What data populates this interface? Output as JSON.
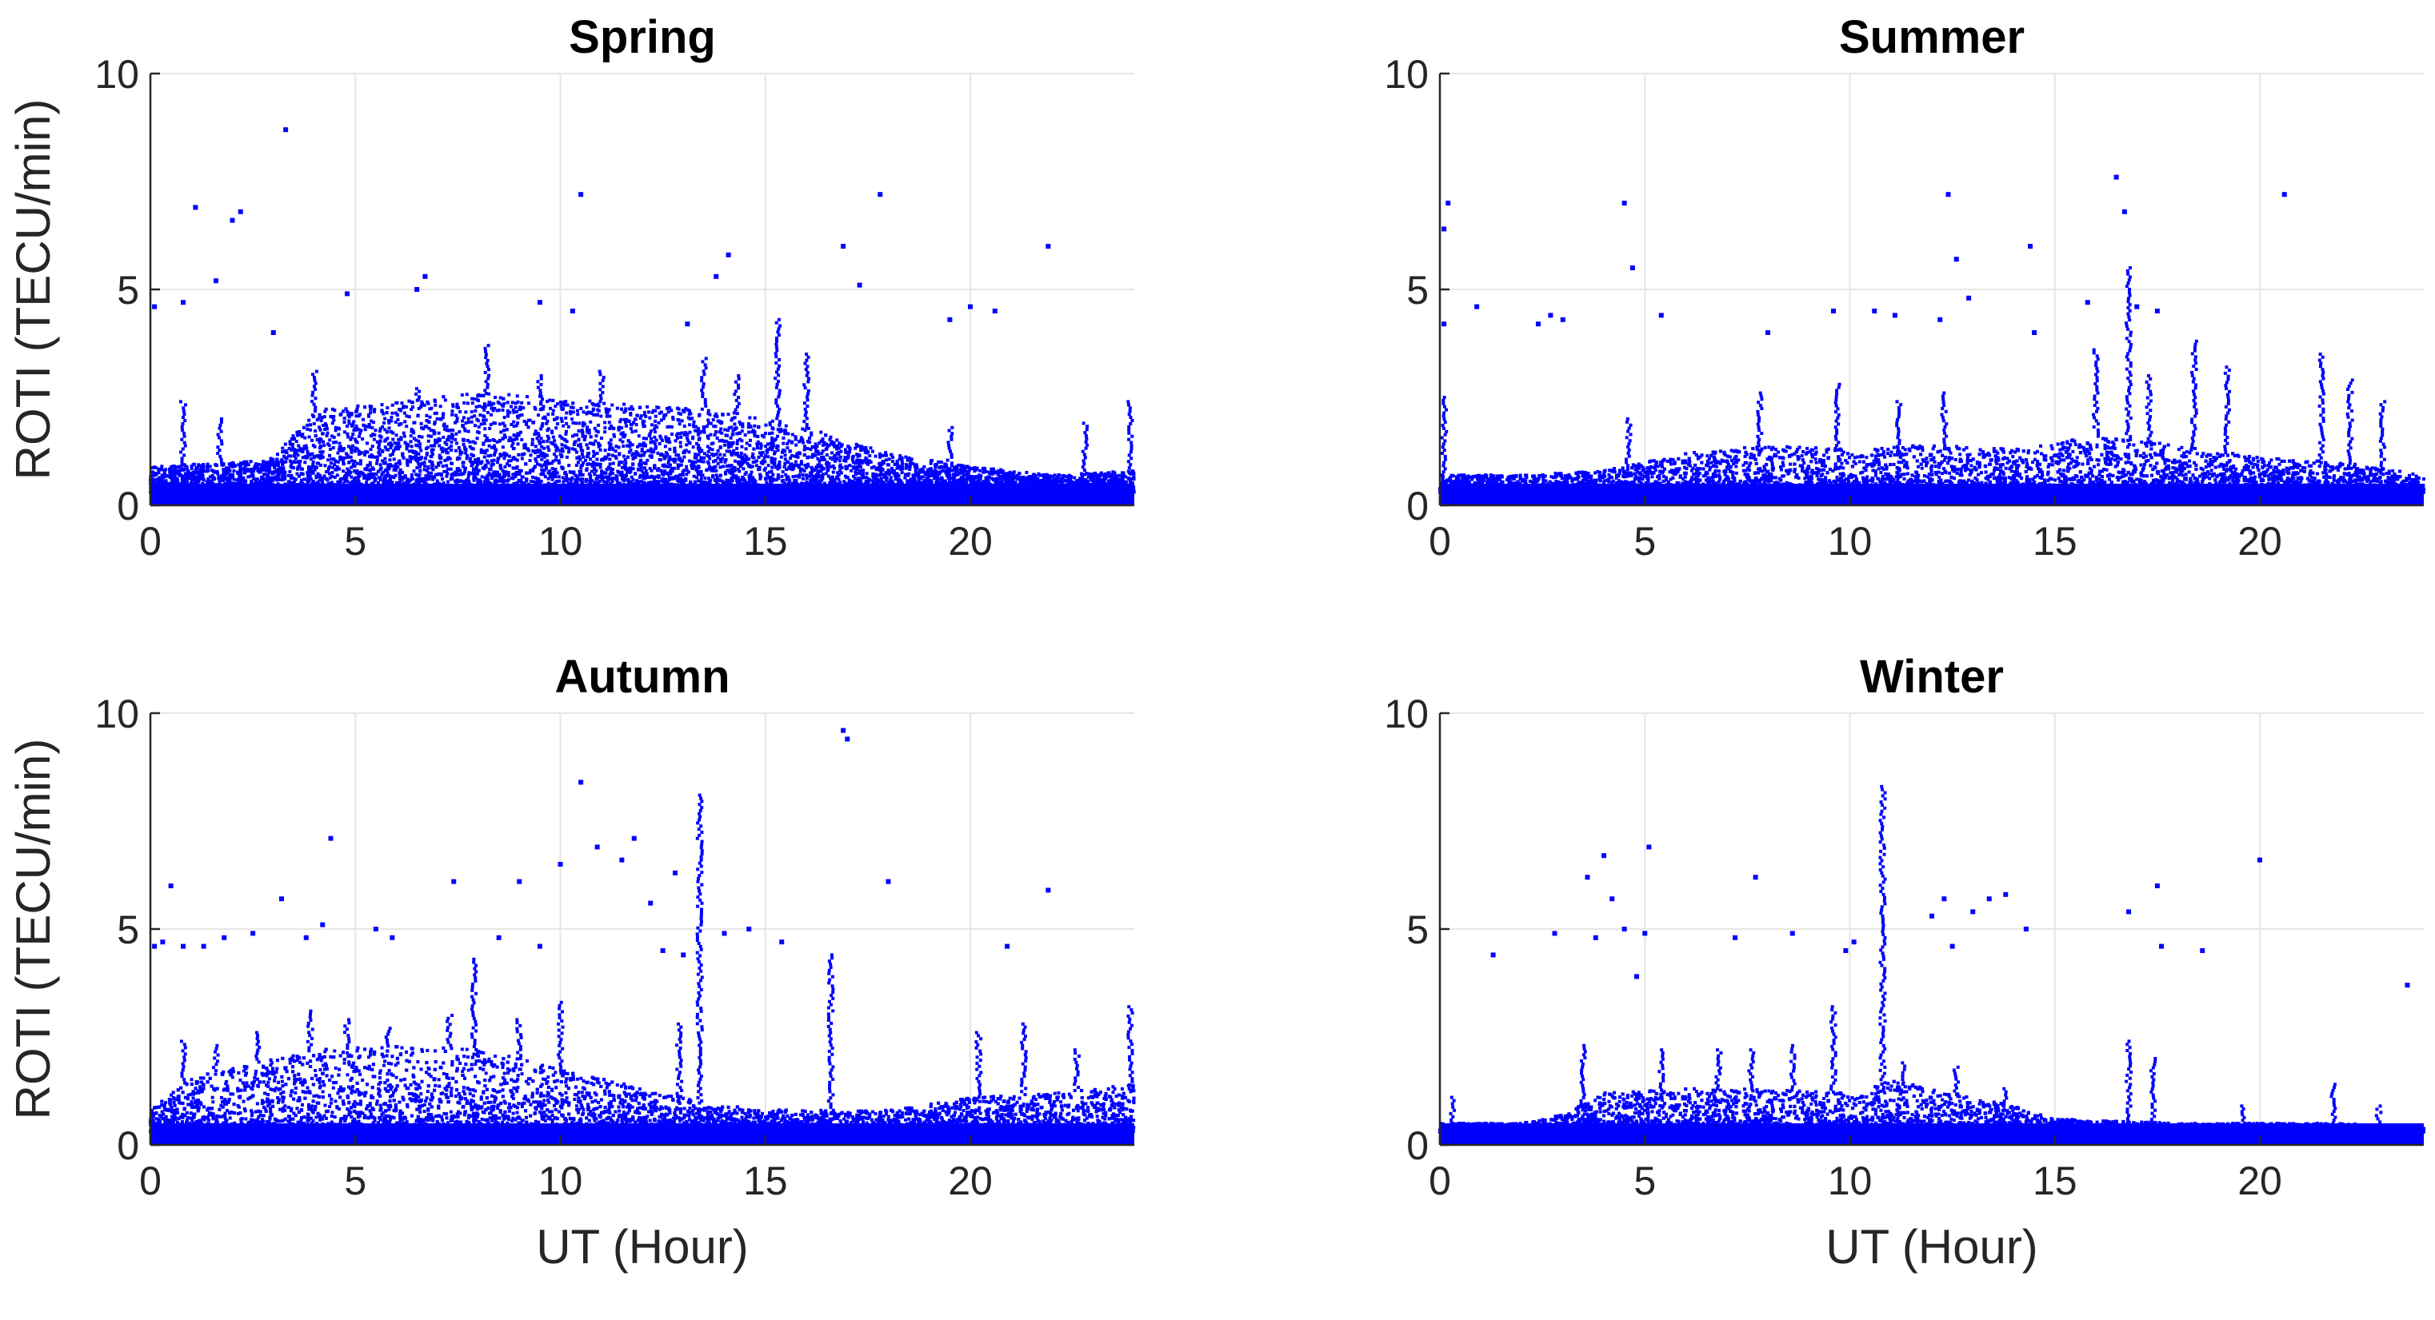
{
  "figure": {
    "ylabel": "ROTI (TECU/min)",
    "xlabel": "UT (Hour)",
    "marker_color": "#0000ff"
  },
  "chart_data": [
    {
      "type": "scatter",
      "title": "Spring",
      "xlabel": "",
      "ylabel": "ROTI (TECU/min)",
      "xlim": [
        0,
        24
      ],
      "ylim": [
        0,
        10
      ],
      "xticks": [
        "0",
        "5",
        "10",
        "15",
        "20"
      ],
      "yticks": [
        "0",
        "5",
        "10"
      ],
      "grid": true,
      "band_profile": [
        [
          0,
          0.9
        ],
        [
          2,
          1.0
        ],
        [
          3,
          1.1
        ],
        [
          4,
          2.2
        ],
        [
          6,
          2.4
        ],
        [
          8,
          2.6
        ],
        [
          10,
          2.5
        ],
        [
          12,
          2.3
        ],
        [
          14,
          2.2
        ],
        [
          16,
          1.8
        ],
        [
          18,
          1.2
        ],
        [
          20,
          0.9
        ],
        [
          22,
          0.7
        ],
        [
          24,
          0.8
        ]
      ],
      "spikes": [
        {
          "x": 0.8,
          "y": 2.4
        },
        {
          "x": 1.7,
          "y": 2.0
        },
        {
          "x": 4.0,
          "y": 3.1
        },
        {
          "x": 6.5,
          "y": 2.7
        },
        {
          "x": 8.2,
          "y": 3.7
        },
        {
          "x": 9.5,
          "y": 3.0
        },
        {
          "x": 11.0,
          "y": 3.1
        },
        {
          "x": 13.5,
          "y": 3.4
        },
        {
          "x": 14.3,
          "y": 3.0
        },
        {
          "x": 15.3,
          "y": 4.3
        },
        {
          "x": 16.0,
          "y": 3.5
        },
        {
          "x": 19.5,
          "y": 1.8
        },
        {
          "x": 22.8,
          "y": 1.9
        },
        {
          "x": 23.9,
          "y": 2.4
        }
      ],
      "outliers": [
        {
          "x": 0.1,
          "y": 4.6
        },
        {
          "x": 0.8,
          "y": 4.7
        },
        {
          "x": 1.1,
          "y": 6.9
        },
        {
          "x": 1.6,
          "y": 5.2
        },
        {
          "x": 2.0,
          "y": 6.6
        },
        {
          "x": 2.2,
          "y": 6.8
        },
        {
          "x": 3.0,
          "y": 4.0
        },
        {
          "x": 3.3,
          "y": 8.7
        },
        {
          "x": 4.8,
          "y": 4.9
        },
        {
          "x": 6.5,
          "y": 5.0
        },
        {
          "x": 6.7,
          "y": 5.3
        },
        {
          "x": 9.5,
          "y": 4.7
        },
        {
          "x": 10.3,
          "y": 4.5
        },
        {
          "x": 10.5,
          "y": 7.2
        },
        {
          "x": 13.1,
          "y": 4.2
        },
        {
          "x": 13.8,
          "y": 5.3
        },
        {
          "x": 14.1,
          "y": 5.8
        },
        {
          "x": 16.9,
          "y": 6.0
        },
        {
          "x": 17.3,
          "y": 5.1
        },
        {
          "x": 17.8,
          "y": 7.2
        },
        {
          "x": 19.5,
          "y": 4.3
        },
        {
          "x": 20.0,
          "y": 4.6
        },
        {
          "x": 20.6,
          "y": 4.5
        },
        {
          "x": 21.9,
          "y": 6.0
        }
      ]
    },
    {
      "type": "scatter",
      "title": "Summer",
      "xlabel": "",
      "ylabel": "",
      "xlim": [
        0,
        24
      ],
      "ylim": [
        0,
        10
      ],
      "xticks": [
        "0",
        "5",
        "10",
        "15",
        "20"
      ],
      "yticks": [
        "0",
        "5",
        "10"
      ],
      "grid": true,
      "band_profile": [
        [
          0,
          0.7
        ],
        [
          2,
          0.7
        ],
        [
          4,
          0.8
        ],
        [
          6,
          1.2
        ],
        [
          8,
          1.4
        ],
        [
          10,
          1.3
        ],
        [
          12,
          1.4
        ],
        [
          14,
          1.3
        ],
        [
          16,
          1.6
        ],
        [
          18,
          1.4
        ],
        [
          20,
          1.1
        ],
        [
          22,
          1.0
        ],
        [
          24,
          0.7
        ]
      ],
      "spikes": [
        {
          "x": 0.1,
          "y": 2.5
        },
        {
          "x": 4.6,
          "y": 2.0
        },
        {
          "x": 7.8,
          "y": 2.6
        },
        {
          "x": 9.7,
          "y": 2.8
        },
        {
          "x": 11.2,
          "y": 2.4
        },
        {
          "x": 12.3,
          "y": 2.6
        },
        {
          "x": 16.0,
          "y": 3.6
        },
        {
          "x": 16.8,
          "y": 5.5
        },
        {
          "x": 17.3,
          "y": 3.0
        },
        {
          "x": 18.4,
          "y": 3.8
        },
        {
          "x": 19.2,
          "y": 3.2
        },
        {
          "x": 21.5,
          "y": 3.5
        },
        {
          "x": 22.2,
          "y": 2.9
        },
        {
          "x": 23.0,
          "y": 2.4
        }
      ],
      "outliers": [
        {
          "x": 0.1,
          "y": 6.4
        },
        {
          "x": 0.2,
          "y": 7.0
        },
        {
          "x": 0.1,
          "y": 4.2
        },
        {
          "x": 0.9,
          "y": 4.6
        },
        {
          "x": 2.4,
          "y": 4.2
        },
        {
          "x": 2.7,
          "y": 4.4
        },
        {
          "x": 3.0,
          "y": 4.3
        },
        {
          "x": 4.5,
          "y": 7.0
        },
        {
          "x": 4.7,
          "y": 5.5
        },
        {
          "x": 5.4,
          "y": 4.4
        },
        {
          "x": 8.0,
          "y": 4.0
        },
        {
          "x": 9.6,
          "y": 4.5
        },
        {
          "x": 10.6,
          "y": 4.5
        },
        {
          "x": 11.1,
          "y": 4.4
        },
        {
          "x": 12.2,
          "y": 4.3
        },
        {
          "x": 12.4,
          "y": 7.2
        },
        {
          "x": 12.6,
          "y": 5.7
        },
        {
          "x": 12.9,
          "y": 4.8
        },
        {
          "x": 14.4,
          "y": 6.0
        },
        {
          "x": 14.5,
          "y": 4.0
        },
        {
          "x": 15.8,
          "y": 4.7
        },
        {
          "x": 16.5,
          "y": 7.6
        },
        {
          "x": 16.7,
          "y": 6.8
        },
        {
          "x": 17.0,
          "y": 4.6
        },
        {
          "x": 17.5,
          "y": 4.5
        },
        {
          "x": 20.6,
          "y": 7.2
        }
      ]
    },
    {
      "type": "scatter",
      "title": "Autumn",
      "xlabel": "UT (Hour)",
      "ylabel": "ROTI (TECU/min)",
      "xlim": [
        0,
        24
      ],
      "ylim": [
        0,
        10
      ],
      "xticks": [
        "0",
        "5",
        "10",
        "15",
        "20"
      ],
      "yticks": [
        "0",
        "5",
        "10"
      ],
      "grid": true,
      "band_profile": [
        [
          0,
          0.8
        ],
        [
          1,
          1.6
        ],
        [
          2,
          1.8
        ],
        [
          4,
          2.2
        ],
        [
          6,
          2.3
        ],
        [
          8,
          2.2
        ],
        [
          10,
          1.8
        ],
        [
          12,
          1.3
        ],
        [
          14,
          0.9
        ],
        [
          16,
          0.8
        ],
        [
          18,
          0.8
        ],
        [
          20,
          1.1
        ],
        [
          22,
          1.2
        ],
        [
          24,
          1.4
        ]
      ],
      "spikes": [
        {
          "x": 0.8,
          "y": 2.4
        },
        {
          "x": 1.6,
          "y": 2.3
        },
        {
          "x": 2.6,
          "y": 2.6
        },
        {
          "x": 3.9,
          "y": 3.1
        },
        {
          "x": 4.8,
          "y": 2.9
        },
        {
          "x": 5.8,
          "y": 2.7
        },
        {
          "x": 7.3,
          "y": 3.0
        },
        {
          "x": 7.9,
          "y": 4.3
        },
        {
          "x": 9.0,
          "y": 2.9
        },
        {
          "x": 10.0,
          "y": 3.3
        },
        {
          "x": 12.9,
          "y": 2.8
        },
        {
          "x": 13.4,
          "y": 8.1
        },
        {
          "x": 16.6,
          "y": 4.4
        },
        {
          "x": 20.2,
          "y": 2.6
        },
        {
          "x": 21.3,
          "y": 2.8
        },
        {
          "x": 22.6,
          "y": 2.2
        },
        {
          "x": 23.9,
          "y": 3.2
        }
      ],
      "outliers": [
        {
          "x": 0.1,
          "y": 4.6
        },
        {
          "x": 0.3,
          "y": 4.7
        },
        {
          "x": 0.5,
          "y": 6.0
        },
        {
          "x": 0.8,
          "y": 4.6
        },
        {
          "x": 1.3,
          "y": 4.6
        },
        {
          "x": 1.8,
          "y": 4.8
        },
        {
          "x": 2.5,
          "y": 4.9
        },
        {
          "x": 3.2,
          "y": 5.7
        },
        {
          "x": 3.8,
          "y": 4.8
        },
        {
          "x": 4.4,
          "y": 7.1
        },
        {
          "x": 4.2,
          "y": 5.1
        },
        {
          "x": 5.5,
          "y": 5.0
        },
        {
          "x": 5.9,
          "y": 4.8
        },
        {
          "x": 7.4,
          "y": 6.1
        },
        {
          "x": 8.5,
          "y": 4.8
        },
        {
          "x": 9.0,
          "y": 6.1
        },
        {
          "x": 9.5,
          "y": 4.6
        },
        {
          "x": 10.0,
          "y": 6.5
        },
        {
          "x": 10.5,
          "y": 8.4
        },
        {
          "x": 10.9,
          "y": 6.9
        },
        {
          "x": 11.5,
          "y": 6.6
        },
        {
          "x": 11.8,
          "y": 7.1
        },
        {
          "x": 12.2,
          "y": 5.6
        },
        {
          "x": 12.5,
          "y": 4.5
        },
        {
          "x": 12.8,
          "y": 6.3
        },
        {
          "x": 13.0,
          "y": 4.4
        },
        {
          "x": 14.0,
          "y": 4.9
        },
        {
          "x": 14.6,
          "y": 5.0
        },
        {
          "x": 15.4,
          "y": 4.7
        },
        {
          "x": 16.9,
          "y": 9.6
        },
        {
          "x": 17.0,
          "y": 9.4
        },
        {
          "x": 18.0,
          "y": 6.1
        },
        {
          "x": 20.9,
          "y": 4.6
        },
        {
          "x": 21.9,
          "y": 5.9
        }
      ]
    },
    {
      "type": "scatter",
      "title": "Winter",
      "xlabel": "UT (Hour)",
      "ylabel": "",
      "xlim": [
        0,
        24
      ],
      "ylim": [
        0,
        10
      ],
      "xticks": [
        "0",
        "5",
        "10",
        "15",
        "20"
      ],
      "yticks": [
        "0",
        "5",
        "10"
      ],
      "grid": true,
      "band_profile": [
        [
          0,
          0.5
        ],
        [
          2,
          0.5
        ],
        [
          3,
          0.7
        ],
        [
          4,
          1.2
        ],
        [
          6,
          1.3
        ],
        [
          8,
          1.3
        ],
        [
          10,
          1.2
        ],
        [
          11,
          1.5
        ],
        [
          12,
          1.3
        ],
        [
          14,
          0.9
        ],
        [
          15,
          0.6
        ],
        [
          18,
          0.5
        ],
        [
          20,
          0.5
        ],
        [
          22,
          0.5
        ],
        [
          24,
          0.4
        ]
      ],
      "spikes": [
        {
          "x": 0.3,
          "y": 1.1
        },
        {
          "x": 3.5,
          "y": 2.3
        },
        {
          "x": 5.4,
          "y": 2.2
        },
        {
          "x": 6.8,
          "y": 2.2
        },
        {
          "x": 7.6,
          "y": 2.2
        },
        {
          "x": 8.6,
          "y": 2.3
        },
        {
          "x": 9.6,
          "y": 3.2
        },
        {
          "x": 10.8,
          "y": 8.3
        },
        {
          "x": 11.3,
          "y": 1.9
        },
        {
          "x": 12.6,
          "y": 1.8
        },
        {
          "x": 13.8,
          "y": 1.3
        },
        {
          "x": 16.8,
          "y": 2.4
        },
        {
          "x": 17.4,
          "y": 2.0
        },
        {
          "x": 19.6,
          "y": 0.9
        },
        {
          "x": 21.8,
          "y": 1.4
        },
        {
          "x": 22.9,
          "y": 0.9
        }
      ],
      "outliers": [
        {
          "x": 1.3,
          "y": 4.4
        },
        {
          "x": 2.8,
          "y": 4.9
        },
        {
          "x": 3.6,
          "y": 6.2
        },
        {
          "x": 3.8,
          "y": 4.8
        },
        {
          "x": 4.0,
          "y": 6.7
        },
        {
          "x": 4.2,
          "y": 5.7
        },
        {
          "x": 4.5,
          "y": 5.0
        },
        {
          "x": 4.8,
          "y": 3.9
        },
        {
          "x": 5.1,
          "y": 6.9
        },
        {
          "x": 5.0,
          "y": 4.9
        },
        {
          "x": 7.2,
          "y": 4.8
        },
        {
          "x": 7.7,
          "y": 6.2
        },
        {
          "x": 8.6,
          "y": 4.9
        },
        {
          "x": 9.9,
          "y": 4.5
        },
        {
          "x": 10.1,
          "y": 4.7
        },
        {
          "x": 12.0,
          "y": 5.3
        },
        {
          "x": 12.3,
          "y": 5.7
        },
        {
          "x": 12.5,
          "y": 4.6
        },
        {
          "x": 13.0,
          "y": 5.4
        },
        {
          "x": 13.4,
          "y": 5.7
        },
        {
          "x": 13.8,
          "y": 5.8
        },
        {
          "x": 14.3,
          "y": 5.0
        },
        {
          "x": 16.8,
          "y": 5.4
        },
        {
          "x": 17.5,
          "y": 6.0
        },
        {
          "x": 17.6,
          "y": 4.6
        },
        {
          "x": 18.6,
          "y": 4.5
        },
        {
          "x": 20.0,
          "y": 6.6
        },
        {
          "x": 23.6,
          "y": 3.7
        }
      ]
    }
  ]
}
